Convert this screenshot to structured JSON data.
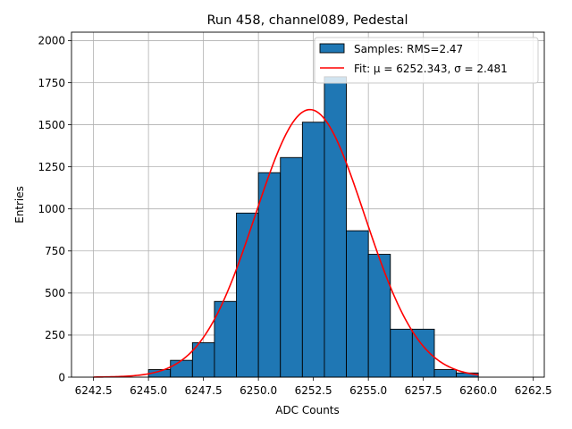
{
  "chart_data": {
    "type": "bar",
    "title": "Run 458, channel089, Pedestal",
    "xlabel": "ADC Counts",
    "ylabel": "Entries",
    "xlim": [
      6241.5,
      6263.0
    ],
    "ylim": [
      0,
      2050
    ],
    "x_ticks": [
      6242.5,
      6245.0,
      6247.5,
      6250.0,
      6252.5,
      6255.0,
      6257.5,
      6260.0,
      6262.5
    ],
    "x_tick_labels": [
      "6242.5",
      "6245.0",
      "6247.5",
      "6250.0",
      "6252.5",
      "6255.0",
      "6257.5",
      "6260.0",
      "6262.5"
    ],
    "y_ticks": [
      0,
      250,
      500,
      750,
      1000,
      1250,
      1500,
      1750,
      2000
    ],
    "y_tick_labels": [
      "0",
      "250",
      "500",
      "750",
      "1000",
      "1250",
      "1500",
      "1750",
      "2000"
    ],
    "grid": true,
    "legend_position": "top-right",
    "series": [
      {
        "name": "Samples: RMS=2.47",
        "kind": "histogram",
        "color": "#1f77b4",
        "edgecolor": "#000000",
        "bin_edges": [
          6245.0,
          6246.0,
          6247.0,
          6248.0,
          6249.0,
          6250.0,
          6251.0,
          6252.0,
          6253.0,
          6254.0,
          6255.0,
          6256.0,
          6257.0,
          6258.0,
          6259.0,
          6260.0
        ],
        "counts": [
          45,
          100,
          205,
          450,
          975,
          1215,
          1305,
          1515,
          1785,
          870,
          730,
          285,
          285,
          45,
          25
        ]
      },
      {
        "name": "Fit: μ = 6252.343, σ = 2.481",
        "kind": "gaussian",
        "color": "#ff0000",
        "mu": 6252.343,
        "sigma": 2.481,
        "amplitude": 1590,
        "x_range": [
          6242.5,
          6260.0
        ]
      }
    ]
  }
}
